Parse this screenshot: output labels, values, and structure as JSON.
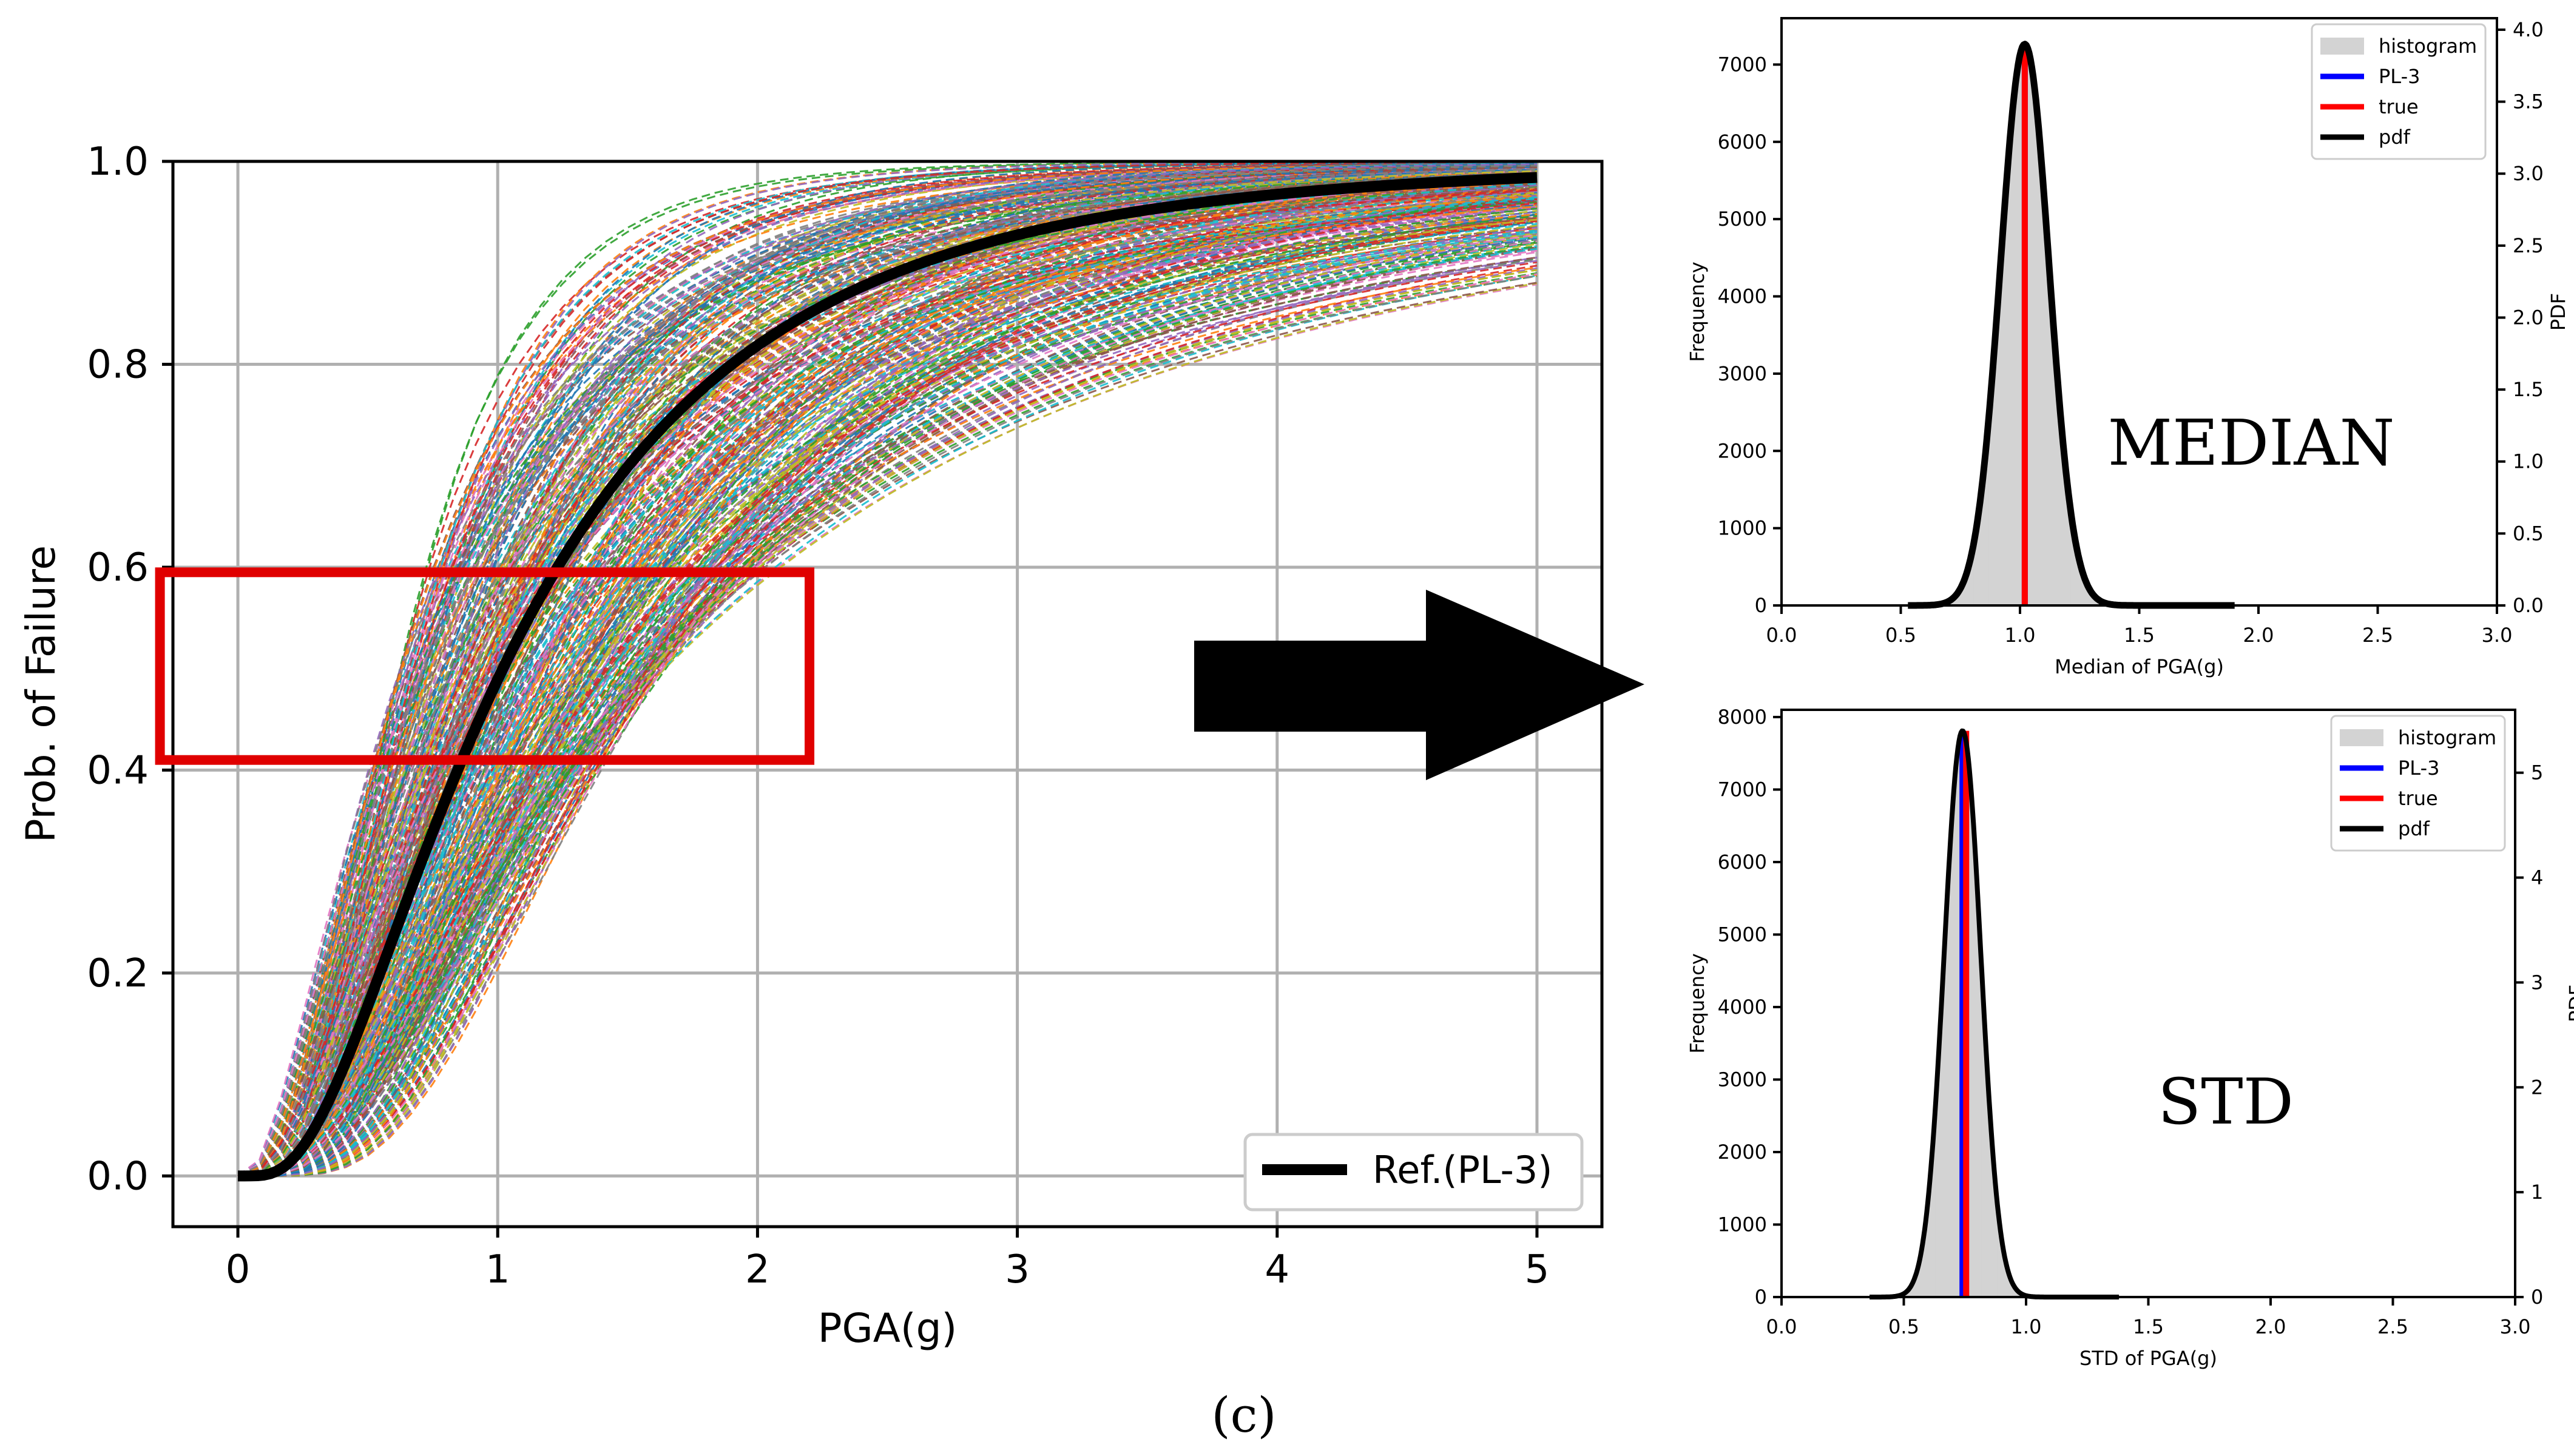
{
  "figure_label": "(c)",
  "colors": {
    "ensemble": [
      "#1f77b4",
      "#ff7f0e",
      "#2ca02c",
      "#d62728",
      "#9467bd",
      "#8c564b",
      "#e377c2",
      "#7f7f7f",
      "#bcbd22",
      "#17becf"
    ],
    "reference": "#000000",
    "highlight_box": "#e00000",
    "hist_fill": "#d3d3d3",
    "pl3": "#0000ff",
    "true": "#ff0000",
    "pdf": "#000000"
  },
  "annotations": {
    "box": {
      "x_range": [
        -0.3,
        2.2
      ],
      "y_range": [
        0.41,
        0.595
      ]
    },
    "arrow_icon": "right-arrow-icon"
  },
  "chart_data": [
    {
      "type": "line",
      "name": "fragility",
      "title": "",
      "xlabel": "PGA(g)",
      "ylabel": "Prob. of Failure",
      "xlim": [
        -0.25,
        5.25
      ],
      "ylim": [
        -0.05,
        1.0
      ],
      "xticks": [
        0,
        1,
        2,
        3,
        4,
        5
      ],
      "xtick_labels": [
        "0",
        "1",
        "2",
        "3",
        "4",
        "5"
      ],
      "yticks": [
        0.0,
        0.2,
        0.4,
        0.6,
        0.8,
        1.0
      ],
      "ytick_labels": [
        "0.0",
        "0.2",
        "0.4",
        "0.6",
        "0.8",
        "1.0"
      ],
      "grid": true,
      "legend": {
        "placement": "bottom-right",
        "entries": [
          {
            "label": "Ref.(PL-3)",
            "color": "#000000"
          }
        ]
      },
      "reference": {
        "name": "Ref.(PL-3)",
        "median": 1.02,
        "beta": 0.74
      },
      "ensemble": {
        "count": 400,
        "median_range": [
          0.62,
          1.65
        ],
        "beta_range": [
          0.55,
          0.98
        ],
        "style": "dashed"
      },
      "x_domain": [
        0,
        5
      ]
    },
    {
      "type": "histogram",
      "name": "median",
      "xlabel": "Median of PGA(g)",
      "ylabel": "Frequency",
      "y2label": "PDF",
      "annotation": "MEDIAN",
      "xlim": [
        0.0,
        3.0
      ],
      "ylim": [
        0,
        7600
      ],
      "y2lim": [
        0,
        4.08
      ],
      "xticks": [
        0.0,
        0.5,
        1.0,
        1.5,
        2.0,
        2.5,
        3.0
      ],
      "xtick_labels": [
        "0.0",
        "0.5",
        "1.0",
        "1.5",
        "2.0",
        "2.5",
        "3.0"
      ],
      "yticks": [
        0,
        1000,
        2000,
        3000,
        4000,
        5000,
        6000,
        7000
      ],
      "ytick_labels": [
        "0",
        "1000",
        "2000",
        "3000",
        "4000",
        "5000",
        "6000",
        "7000"
      ],
      "y2ticks": [
        0.0,
        0.5,
        1.0,
        1.5,
        2.0,
        2.5,
        3.0,
        3.5,
        4.0
      ],
      "y2tick_labels": [
        "0.0",
        "0.5",
        "1.0",
        "1.5",
        "2.0",
        "2.5",
        "3.0",
        "3.5",
        "4.0"
      ],
      "legend": {
        "placement": "top-right",
        "entries": [
          {
            "label": "histogram",
            "kind": "patch",
            "color": "#d3d3d3"
          },
          {
            "label": "PL-3",
            "kind": "line",
            "color": "#0000ff"
          },
          {
            "label": "true",
            "kind": "line",
            "color": "#ff0000"
          },
          {
            "label": "pdf",
            "kind": "line",
            "color": "#000000"
          }
        ]
      },
      "histogram": {
        "mean": 1.02,
        "std": 0.102,
        "peak": 7250
      },
      "pdf": {
        "mean": 1.02,
        "std": 0.102,
        "peak": 3.9,
        "range": [
          0.53,
          1.9
        ]
      },
      "pl3_value": 1.02,
      "true_value": 1.02
    },
    {
      "type": "histogram",
      "name": "std",
      "xlabel": "STD of PGA(g)",
      "ylabel": "Frequency",
      "y2label": "PDF",
      "annotation": "STD",
      "xlim": [
        0.0,
        3.0
      ],
      "ylim": [
        0,
        8100
      ],
      "y2lim": [
        0,
        5.6
      ],
      "xticks": [
        0.0,
        0.5,
        1.0,
        1.5,
        2.0,
        2.5,
        3.0
      ],
      "xtick_labels": [
        "0.0",
        "0.5",
        "1.0",
        "1.5",
        "2.0",
        "2.5",
        "3.0"
      ],
      "yticks": [
        0,
        1000,
        2000,
        3000,
        4000,
        5000,
        6000,
        7000,
        8000
      ],
      "ytick_labels": [
        "0",
        "1000",
        "2000",
        "3000",
        "4000",
        "5000",
        "6000",
        "7000",
        "8000"
      ],
      "y2ticks": [
        0,
        1,
        2,
        3,
        4,
        5
      ],
      "y2tick_labels": [
        "0",
        "1",
        "2",
        "3",
        "4",
        "5"
      ],
      "legend": {
        "placement": "top-right",
        "entries": [
          {
            "label": "histogram",
            "kind": "patch",
            "color": "#d3d3d3"
          },
          {
            "label": "PL-3",
            "kind": "line",
            "color": "#0000ff"
          },
          {
            "label": "true",
            "kind": "line",
            "color": "#ff0000"
          },
          {
            "label": "pdf",
            "kind": "line",
            "color": "#000000"
          }
        ]
      },
      "histogram": {
        "mean": 0.74,
        "std": 0.075,
        "peak": 7800
      },
      "pdf": {
        "mean": 0.74,
        "std": 0.075,
        "peak": 5.4,
        "range": [
          0.36,
          1.38
        ]
      },
      "pl3_value": 0.74,
      "true_value": 0.755
    }
  ]
}
